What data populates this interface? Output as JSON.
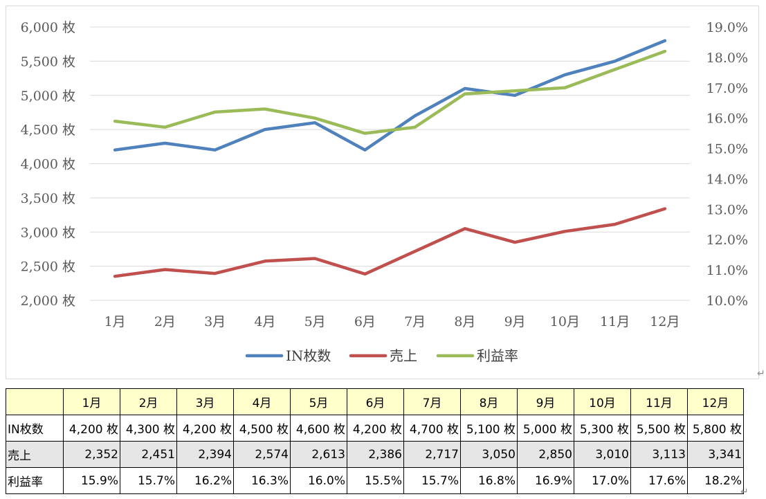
{
  "chart_data": {
    "type": "line",
    "categories": [
      "1月",
      "2月",
      "3月",
      "4月",
      "5月",
      "6月",
      "7月",
      "8月",
      "9月",
      "10月",
      "11月",
      "12月"
    ],
    "series": [
      {
        "name": "IN枚数",
        "axis": "left",
        "color": "#4f81bd",
        "values": [
          4200,
          4300,
          4200,
          4500,
          4600,
          4200,
          4700,
          5100,
          5000,
          5300,
          5500,
          5800
        ]
      },
      {
        "name": "売上",
        "axis": "left",
        "color": "#c0504d",
        "values": [
          2352,
          2451,
          2394,
          2574,
          2613,
          2386,
          2717,
          3050,
          2850,
          3010,
          3113,
          3341
        ]
      },
      {
        "name": "利益率",
        "axis": "right",
        "color": "#9bbb59",
        "values": [
          15.9,
          15.7,
          16.2,
          16.3,
          16.0,
          15.5,
          15.7,
          16.8,
          16.9,
          17.0,
          17.6,
          18.2
        ]
      }
    ],
    "y_left": {
      "min": 2000,
      "max": 6000,
      "step": 500,
      "tick_labels": [
        "2,000 枚",
        "2,500 枚",
        "3,000 枚",
        "3,500 枚",
        "4,000 枚",
        "4,500 枚",
        "5,000 枚",
        "5,500 枚",
        "6,000 枚"
      ]
    },
    "y_right": {
      "min": 10.0,
      "max": 19.0,
      "step": 1.0,
      "tick_labels": [
        "10.0%",
        "11.0%",
        "12.0%",
        "13.0%",
        "14.0%",
        "15.0%",
        "16.0%",
        "17.0%",
        "18.0%",
        "19.0%"
      ]
    },
    "grid": true,
    "legend_position": "bottom"
  },
  "table": {
    "months": [
      "1月",
      "2月",
      "3月",
      "4月",
      "5月",
      "6月",
      "7月",
      "8月",
      "9月",
      "10月",
      "11月",
      "12月"
    ],
    "rows": [
      {
        "label": "IN枚数",
        "cells": [
          "4,200 枚",
          "4,300 枚",
          "4,200 枚",
          "4,500 枚",
          "4,600 枚",
          "4,200 枚",
          "4,700 枚",
          "5,100 枚",
          "5,000 枚",
          "5,300 枚",
          "5,500 枚",
          "5,800 枚"
        ]
      },
      {
        "label": "売上",
        "cells": [
          "2,352",
          "2,451",
          "2,394",
          "2,574",
          "2,613",
          "2,386",
          "2,717",
          "3,050",
          "2,850",
          "3,010",
          "3,113",
          "3,341"
        ]
      },
      {
        "label": "利益率",
        "cells": [
          "15.9%",
          "15.7%",
          "16.2%",
          "16.3%",
          "16.0%",
          "15.5%",
          "15.7%",
          "16.8%",
          "16.9%",
          "17.0%",
          "17.6%",
          "18.2%"
        ]
      }
    ]
  },
  "icons": {
    "return_mark": "paragraph-return-icon"
  }
}
